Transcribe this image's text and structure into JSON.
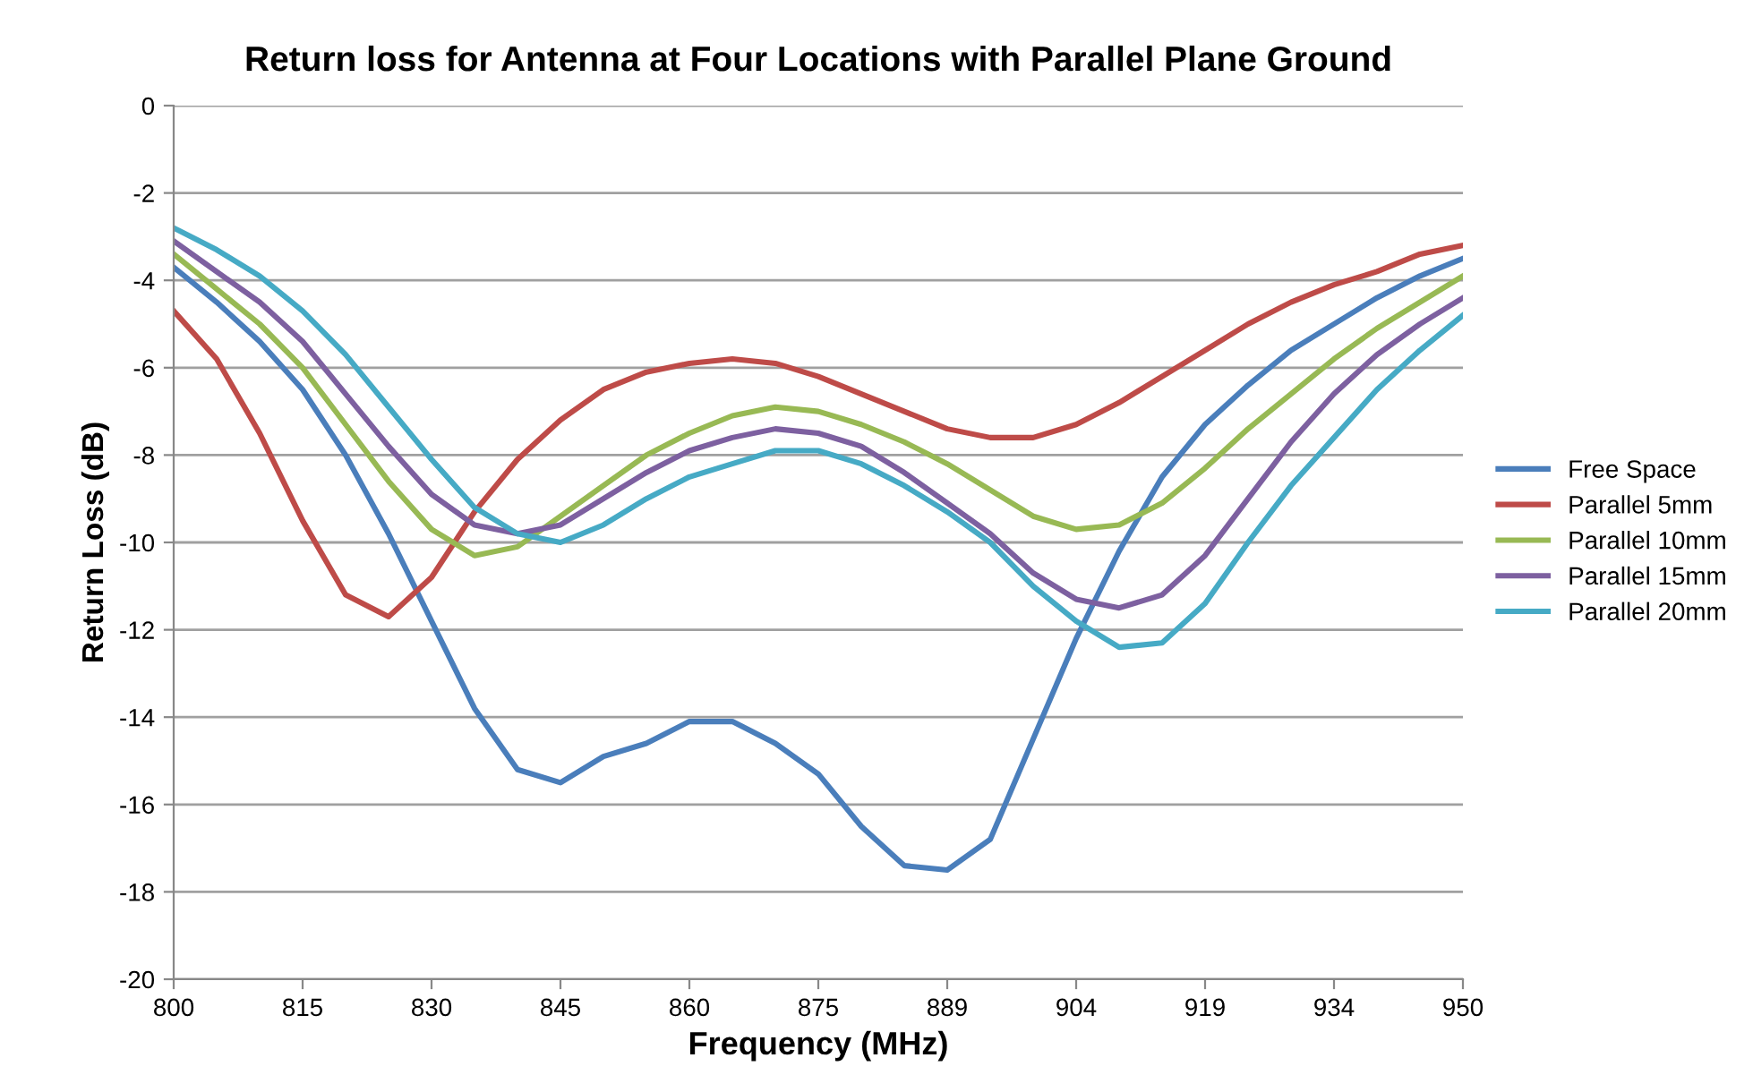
{
  "chart_data": {
    "type": "line",
    "title": "Return loss for Antenna at Four Locations with Parallel Plane Ground",
    "xlabel": "Frequency (MHz)",
    "ylabel": "Return Loss (dB)",
    "categories": [
      "800",
      null,
      null,
      "815",
      null,
      null,
      "830",
      null,
      null,
      "845",
      null,
      null,
      "860",
      null,
      null,
      "875",
      null,
      null,
      "889",
      null,
      null,
      "904",
      null,
      null,
      "919",
      null,
      null,
      "934",
      null,
      null,
      "950"
    ],
    "series": [
      {
        "name": "Free Space",
        "color": "#4a7ebb",
        "values": [
          -3.7,
          -4.5,
          -5.4,
          -6.5,
          -8.0,
          -9.8,
          -11.8,
          -13.8,
          -15.2,
          -15.5,
          -14.9,
          -14.6,
          -14.1,
          -14.1,
          -14.6,
          -15.3,
          -16.5,
          -17.4,
          -17.5,
          -16.8,
          -14.5,
          -12.2,
          -10.2,
          -8.5,
          -7.3,
          -6.4,
          -5.6,
          -5.0,
          -4.4,
          -3.9,
          -3.5
        ]
      },
      {
        "name": "Parallel 5mm",
        "color": "#be4b48",
        "values": [
          -4.7,
          -5.8,
          -7.5,
          -9.5,
          -11.2,
          -11.7,
          -10.8,
          -9.3,
          -8.1,
          -7.2,
          -6.5,
          -6.1,
          -5.9,
          -5.8,
          -5.9,
          -6.2,
          -6.6,
          -7.0,
          -7.4,
          -7.6,
          -7.6,
          -7.3,
          -6.8,
          -6.2,
          -5.6,
          -5.0,
          -4.5,
          -4.1,
          -3.8,
          -3.4,
          -3.2
        ]
      },
      {
        "name": "Parallel 10mm",
        "color": "#98b954",
        "values": [
          -3.4,
          -4.2,
          -5.0,
          -6.0,
          -7.3,
          -8.6,
          -9.7,
          -10.3,
          -10.1,
          -9.4,
          -8.7,
          -8.0,
          -7.5,
          -7.1,
          -6.9,
          -7.0,
          -7.3,
          -7.7,
          -8.2,
          -8.8,
          -9.4,
          -9.7,
          -9.6,
          -9.1,
          -8.3,
          -7.4,
          -6.6,
          -5.8,
          -5.1,
          -4.5,
          -3.9
        ]
      },
      {
        "name": "Parallel 15mm",
        "color": "#7d60a0",
        "values": [
          -3.1,
          -3.8,
          -4.5,
          -5.4,
          -6.6,
          -7.8,
          -8.9,
          -9.6,
          -9.8,
          -9.6,
          -9.0,
          -8.4,
          -7.9,
          -7.6,
          -7.4,
          -7.5,
          -7.8,
          -8.4,
          -9.1,
          -9.8,
          -10.7,
          -11.3,
          -11.5,
          -11.2,
          -10.3,
          -9.0,
          -7.7,
          -6.6,
          -5.7,
          -5.0,
          -4.4
        ]
      },
      {
        "name": "Parallel 20mm",
        "color": "#46aac5",
        "values": [
          -2.8,
          -3.3,
          -3.9,
          -4.7,
          -5.7,
          -6.9,
          -8.1,
          -9.2,
          -9.8,
          -10.0,
          -9.6,
          -9.0,
          -8.5,
          -8.2,
          -7.9,
          -7.9,
          -8.2,
          -8.7,
          -9.3,
          -10.0,
          -11.0,
          -11.8,
          -12.4,
          -12.3,
          -11.4,
          -10.0,
          -8.7,
          -7.6,
          -6.5,
          -5.6,
          -4.8
        ]
      }
    ],
    "ylim": [
      -20,
      0
    ],
    "yticks": [
      -20,
      -18,
      -16,
      -14,
      -12,
      -10,
      -8,
      -6,
      -4,
      -2,
      0
    ],
    "grid": "y",
    "legend": "right",
    "marker": "none",
    "line_style": "solid"
  }
}
